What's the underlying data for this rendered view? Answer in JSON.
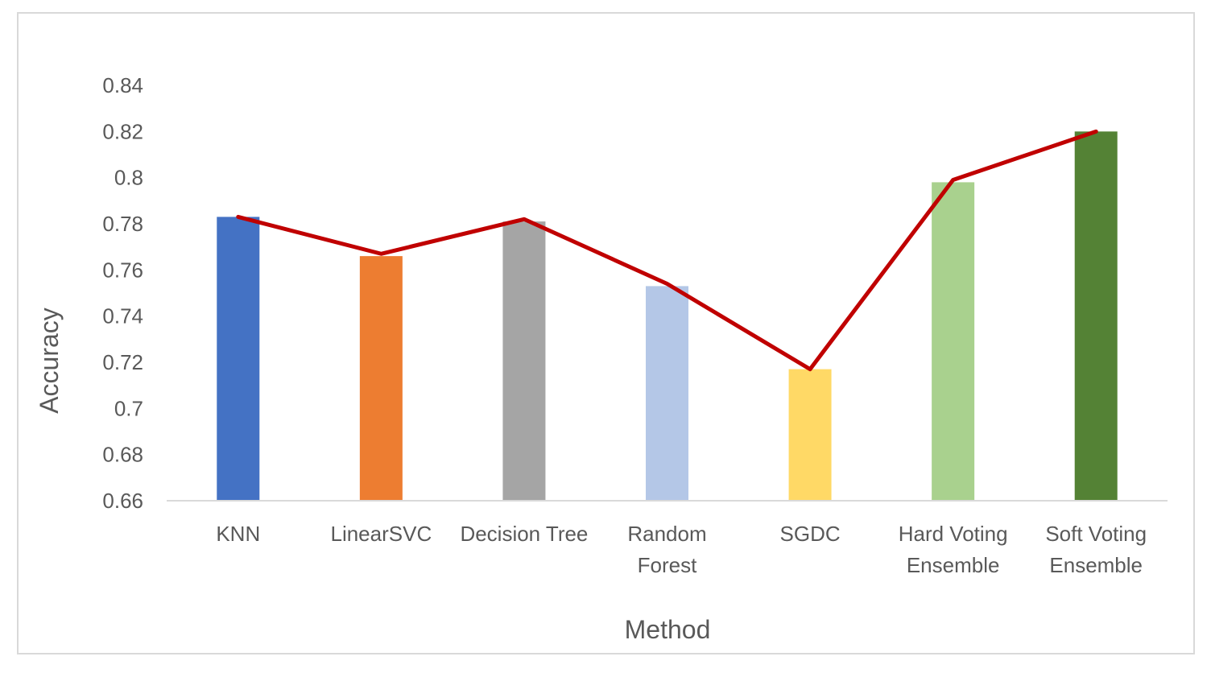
{
  "chart_data": {
    "type": "bar",
    "title": "",
    "xlabel": "Method",
    "ylabel": "Accuracy",
    "ylim": [
      0.66,
      0.84
    ],
    "yticks": [
      "0.66",
      "0.68",
      "0.7",
      "0.72",
      "0.74",
      "0.76",
      "0.78",
      "0.8",
      "0.82",
      "0.84"
    ],
    "categories": [
      [
        "KNN"
      ],
      [
        "LinearSVC"
      ],
      [
        "Decision Tree"
      ],
      [
        "Random",
        "Forest"
      ],
      [
        "SGDC"
      ],
      [
        "Hard Voting",
        "Ensemble"
      ],
      [
        "Soft Voting",
        "Ensemble"
      ]
    ],
    "values": [
      0.783,
      0.766,
      0.781,
      0.753,
      0.717,
      0.798,
      0.82
    ],
    "bar_colors": [
      "#4472C4",
      "#ED7D31",
      "#A5A5A5",
      "#B4C7E7",
      "#FFD966",
      "#A9D18E",
      "#548235"
    ],
    "line_series": {
      "values": [
        0.783,
        0.767,
        0.782,
        0.754,
        0.717,
        0.799,
        0.82
      ],
      "color": "#C00000"
    },
    "gridlines": false
  }
}
